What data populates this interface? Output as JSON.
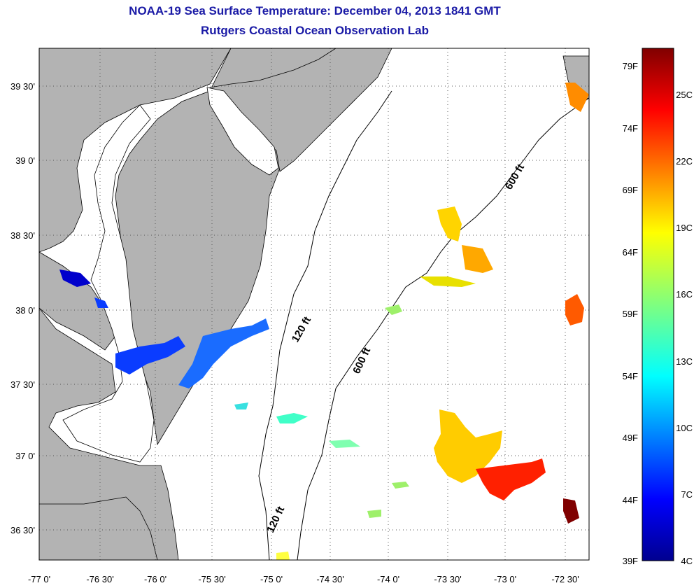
{
  "title": {
    "line1": "NOAA-19 Sea Surface Temperature:  December 04, 2013 1841 GMT",
    "line2": "Rutgers Coastal Ocean Observation Lab"
  },
  "map": {
    "lon_labels": [
      "-77 0'",
      "-76 30'",
      "-76 0'",
      "-75 30'",
      "-75 0'",
      "-74 30'",
      "-74 0'",
      "-73 30'",
      "-73 0'",
      "-72 30'"
    ],
    "lat_labels": [
      "39 30'",
      "39 0'",
      "38 30'",
      "38 0'",
      "37 30'",
      "37 0'",
      "36 30'"
    ],
    "isobath_labels": {
      "a": "600 ft",
      "b": "120 ft",
      "c": "600 ft",
      "d": "120 ft"
    },
    "grid": true
  },
  "colorbar": {
    "fahrenheit": [
      "79F",
      "74F",
      "69F",
      "64F",
      "59F",
      "54F",
      "49F",
      "44F",
      "39F"
    ],
    "celsius": [
      "25C",
      "22C",
      "19C",
      "16C",
      "13C",
      "10C",
      "7C",
      "4C"
    ]
  },
  "colors": {
    "land": "#b3b3b3",
    "title": "#1a1aa6",
    "cold": "#00008f",
    "warm": "#800000"
  }
}
